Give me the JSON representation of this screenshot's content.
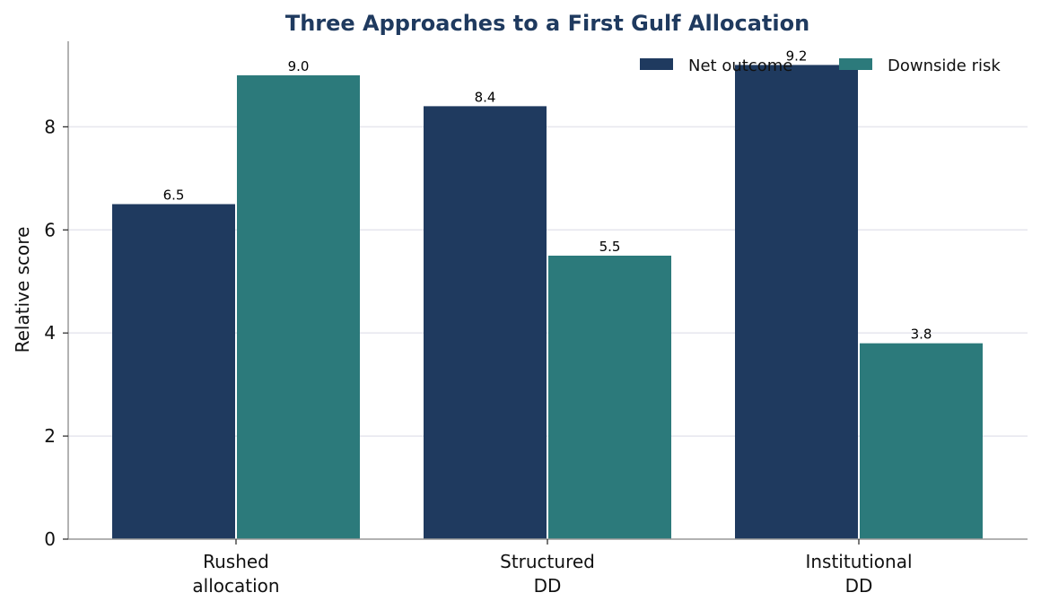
{
  "chart_data": {
    "type": "bar",
    "title": "Three Approaches to a First Gulf Allocation",
    "xlabel": "",
    "ylabel": "Relative score",
    "categories": [
      [
        "Rushed",
        "allocation"
      ],
      [
        "Structured",
        "DD"
      ],
      [
        "Institutional",
        "DD"
      ]
    ],
    "series": [
      {
        "name": "Net outcome",
        "values": [
          6.5,
          8.4,
          9.2
        ],
        "labels": [
          "6.5",
          "8.4",
          "9.2"
        ],
        "color": "#1f3a5f"
      },
      {
        "name": "Downside risk",
        "values": [
          9.0,
          5.5,
          3.8
        ],
        "labels": [
          "9.0",
          "5.5",
          "3.8"
        ],
        "color": "#2c7a7b"
      }
    ],
    "ylim": [
      0,
      9.66
    ],
    "yticks": [
      0,
      2,
      4,
      6,
      8
    ],
    "ytick_labels": [
      "0",
      "2",
      "4",
      "6",
      "8"
    ],
    "grid": "y",
    "legend_position": "top-right",
    "title_color": "#1f3a5f",
    "grid_color": "#e6e6ee",
    "axis_color": "#999999"
  }
}
